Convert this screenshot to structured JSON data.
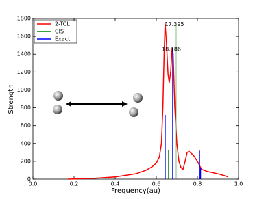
{
  "chart_data": {
    "type": "line",
    "xlabel": "Frequency(au)",
    "ylabel": "Strength",
    "xlim": [
      0,
      1
    ],
    "xticks": [
      {
        "value": 0,
        "label": "0.0"
      },
      0.2,
      0.4,
      0.6,
      0.8,
      {
        "value": 1,
        "label": "1.0"
      }
    ],
    "ylim": [
      0,
      1800
    ],
    "yticks": [
      0,
      200,
      400,
      600,
      800,
      1000,
      1200,
      1400,
      1600,
      1800
    ],
    "legend": "upper left",
    "annotations": [
      "17.395",
      "18.186"
    ],
    "series": [
      {
        "name": "2-TCL",
        "color": "#ff0000",
        "kind": "line",
        "x": [
          0.17,
          0.3,
          0.4,
          0.5,
          0.55,
          0.58,
          0.6,
          0.615,
          0.625,
          0.632,
          0.638,
          0.643,
          0.65,
          0.657,
          0.663,
          0.67,
          0.677,
          0.682,
          0.69,
          0.7,
          0.71,
          0.72,
          0.73,
          0.74,
          0.75,
          0.76,
          0.78,
          0.8,
          0.82,
          0.85,
          0.88,
          0.9,
          0.93,
          0.95
        ],
        "values": [
          0,
          10,
          25,
          60,
          100,
          140,
          180,
          250,
          400,
          800,
          1400,
          1745,
          1500,
          1180,
          1080,
          1200,
          1470,
          1400,
          800,
          400,
          200,
          130,
          110,
          200,
          300,
          310,
          270,
          200,
          110,
          85,
          70,
          60,
          40,
          25
        ]
      },
      {
        "name": "CIS",
        "color": "#008000",
        "kind": "stem",
        "x": [
          0.66,
          0.695,
          0.81
        ],
        "values": [
          330,
          1750,
          80
        ]
      },
      {
        "name": "Exact",
        "color": "#0000ff",
        "kind": "stem",
        "x": [
          0.643,
          0.68,
          0.81,
          0.815
        ],
        "values": [
          720,
          1470,
          320,
          130
        ]
      }
    ]
  }
}
